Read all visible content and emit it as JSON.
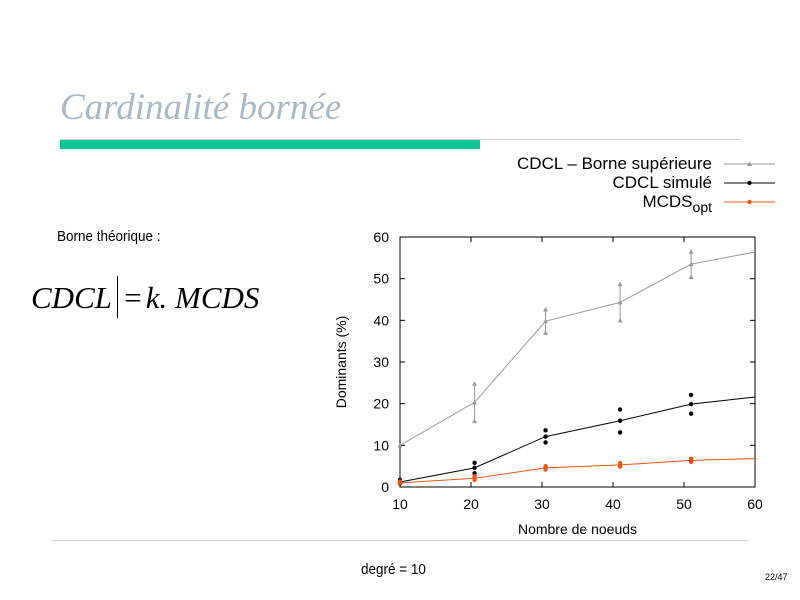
{
  "slide": {
    "title": "Cardinalité bornée",
    "theory_label": "Borne théorique :",
    "formula": {
      "left": "CDCL",
      "equals": "=",
      "right": "k. MCDS"
    },
    "footer_note": "degré = 10",
    "page_number": "22/47"
  },
  "colors": {
    "title": "#a9b7c6",
    "accent_bar": "#12c795",
    "rule": "#c8d2da"
  },
  "chart_data": {
    "type": "line",
    "xlabel": "Nombre de noeuds",
    "ylabel": "Dominants (%)",
    "xlim": [
      10,
      60
    ],
    "ylim": [
      0,
      60
    ],
    "xticks": [
      10,
      20,
      30,
      40,
      50,
      60
    ],
    "yticks": [
      0,
      10,
      20,
      30,
      40,
      50,
      60
    ],
    "grid": false,
    "legend_position": "top-right",
    "series": [
      {
        "name": "CDCL – Borne supérieure",
        "name_subscript": "",
        "color": "#999999",
        "marker": "triangle",
        "x": [
          10,
          20.5,
          30.5,
          41,
          51,
          60
        ],
        "y": [
          10,
          20.3,
          39.8,
          44.3,
          53.5,
          56.4
        ],
        "error_bars": [
          {
            "x": 20.5,
            "low": 15.8,
            "high": 24.8
          },
          {
            "x": 30.5,
            "low": 37,
            "high": 42.6
          },
          {
            "x": 41,
            "low": 40,
            "high": 48.7
          },
          {
            "x": 51,
            "low": 50.4,
            "high": 56.5
          }
        ]
      },
      {
        "name": "CDCL simulé",
        "name_subscript": "",
        "color": "#000000",
        "marker": "circle",
        "x": [
          10,
          20.5,
          30.5,
          41,
          51,
          60
        ],
        "y": [
          1.2,
          4.6,
          12.1,
          15.9,
          19.9,
          21.6
        ],
        "spread_points": [
          {
            "x": 10,
            "y": [
              0.8,
              1.7
            ]
          },
          {
            "x": 20.5,
            "y": [
              3.3,
              5.8
            ]
          },
          {
            "x": 30.5,
            "y": [
              10.7,
              13.6
            ]
          },
          {
            "x": 41,
            "y": [
              13.1,
              18.6
            ]
          },
          {
            "x": 51,
            "y": [
              17.6,
              22.1
            ]
          }
        ]
      },
      {
        "name": "MCDS",
        "name_subscript": "opt",
        "color": "#ee5511",
        "marker": "circle",
        "x": [
          10,
          20.5,
          30.5,
          41,
          51,
          60
        ],
        "y": [
          1,
          2.1,
          4.6,
          5.3,
          6.4,
          6.8
        ],
        "spread_points": [
          {
            "x": 10,
            "y": [
              0.9,
              1.3
            ]
          },
          {
            "x": 20.5,
            "y": [
              1.7,
              2.6
            ]
          },
          {
            "x": 30.5,
            "y": [
              4.2,
              5.0
            ]
          },
          {
            "x": 41,
            "y": [
              4.9,
              5.7
            ]
          },
          {
            "x": 51,
            "y": [
              6.0,
              6.8
            ]
          }
        ]
      }
    ]
  }
}
